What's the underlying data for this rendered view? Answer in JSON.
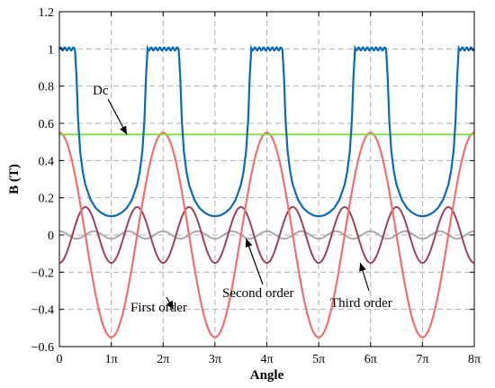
{
  "chart_data": {
    "type": "line",
    "xlabel": "Angle",
    "ylabel": "B (T)",
    "xlim": [
      0,
      8
    ],
    "ylim": [
      -0.6,
      1.2
    ],
    "x_ticks": [
      0,
      1,
      2,
      3,
      4,
      5,
      6,
      7,
      8
    ],
    "x_tick_labels": [
      "0",
      "1π",
      "2π",
      "3π",
      "4π",
      "5π",
      "6π",
      "7π",
      "8π"
    ],
    "y_ticks": [
      -0.6,
      -0.4,
      -0.2,
      0,
      0.2,
      0.4,
      0.6,
      0.8,
      1,
      1.2
    ],
    "y_tick_labels": [
      "−0.6",
      "−0.4",
      "−0.2",
      "0",
      "0.2",
      "0.4",
      "0.6",
      "0.8",
      "1",
      "1.2"
    ],
    "grid": true,
    "x_unit": "π rad",
    "series": [
      {
        "key": "total",
        "color": "#0a6ab4",
        "description": "flat-top waveform: plateau ~1.0 T, trough ~0.1 T, period 2π",
        "x": [
          0,
          0.25,
          0.3,
          0.35,
          0.4,
          0.5,
          0.6,
          0.8,
          1.0,
          1.2,
          1.4,
          1.5,
          1.6,
          1.65,
          1.7,
          1.75,
          2.0,
          2.25,
          2.3
        ],
        "y": [
          1.0,
          1.0,
          1.01,
          0.75,
          0.45,
          0.28,
          0.2,
          0.13,
          0.1,
          0.13,
          0.2,
          0.28,
          0.45,
          0.75,
          1.01,
          1.0,
          1.0,
          1.0,
          1.01
        ],
        "period": 2
      },
      {
        "key": "dc",
        "color": "#80e040",
        "description": "constant DC component",
        "constant": 0.54
      },
      {
        "key": "first",
        "color": "#f07070",
        "description": "first order harmonic, amplitude 0.55, period 2π, max at 0",
        "amplitude": 0.55,
        "period": 2,
        "phase": 0
      },
      {
        "key": "second",
        "color": "#a0405a",
        "description": "second order harmonic, amplitude 0.15, period π, min at 0",
        "amplitude": 0.15,
        "period": 1,
        "phase": 0.5
      },
      {
        "key": "third",
        "color": "#aaaaaa",
        "description": "third order harmonic, amplitude 0.02, period 2π/3",
        "amplitude": 0.02,
        "period": 0.6667,
        "phase": 0
      }
    ],
    "annotations": [
      {
        "text": "Dc",
        "target_x": 1.3,
        "target_y": 0.54
      },
      {
        "text": "First order",
        "target_x": 2.2,
        "target_y": -0.4
      },
      {
        "text": "Second order",
        "target_x": 3.6,
        "target_y": -0.02
      },
      {
        "text": "Third order",
        "target_x": 5.8,
        "target_y": -0.15
      }
    ]
  }
}
